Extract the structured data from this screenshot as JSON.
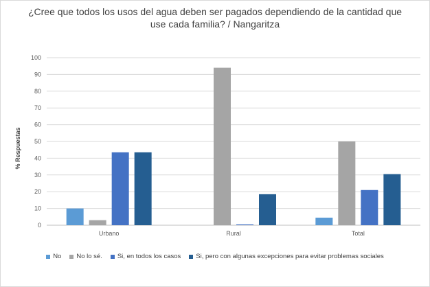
{
  "chart_data": {
    "type": "bar",
    "title": [
      "¿Cree que todos los usos del agua deben ser pagados dependiendo de la cantidad que",
      "use cada familia? / Nangaritza"
    ],
    "xlabel": "",
    "ylabel": "% Respuestas",
    "categories": [
      "Urbano",
      "Rural",
      "Total"
    ],
    "ylim": [
      0,
      100
    ],
    "yticks": [
      0,
      10,
      20,
      30,
      40,
      50,
      60,
      70,
      80,
      90,
      100
    ],
    "grid": true,
    "legend_position": "bottom",
    "series": [
      {
        "name": "No",
        "color": "#5b9bd5",
        "values": [
          10,
          0,
          4.5
        ]
      },
      {
        "name": "No lo sé.",
        "color": "#a5a5a5",
        "values": [
          3,
          94,
          50
        ]
      },
      {
        "name": "Si, en todos los casos",
        "color": "#4472c4",
        "values": [
          43.5,
          0.5,
          21
        ]
      },
      {
        "name": "Si, pero con algunas excepciones para evitar problemas sociales",
        "color": "#255e91",
        "values": [
          43.5,
          18.5,
          30.5
        ]
      }
    ]
  }
}
